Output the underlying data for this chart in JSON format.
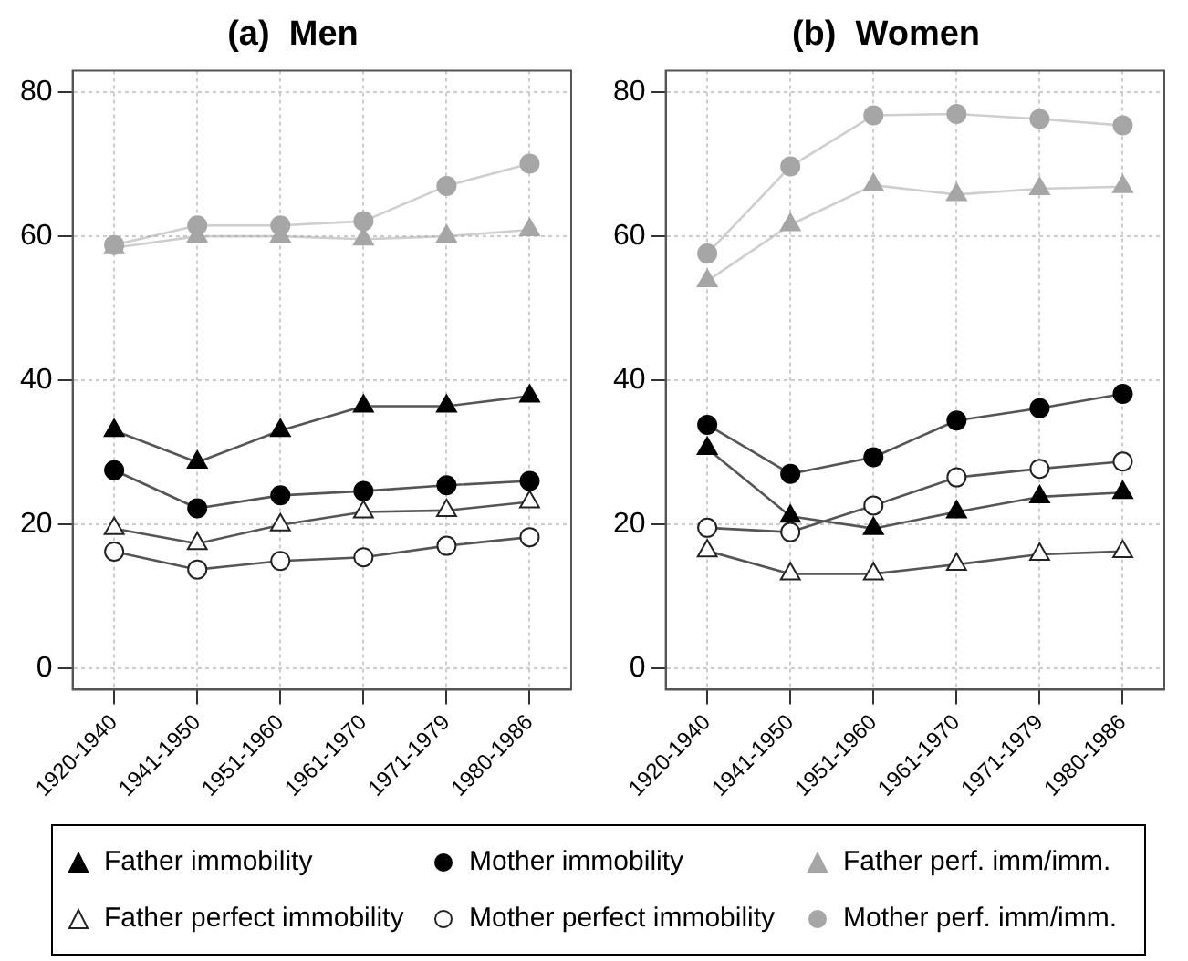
{
  "chart_data": [
    {
      "type": "line",
      "title": "(a)  Men",
      "categories": [
        "1920-1940",
        "1941-1950",
        "1951-1960",
        "1961-1970",
        "1971-1979",
        "1980-1986"
      ],
      "ylim": [
        -3,
        83
      ],
      "yticks": [
        0,
        20,
        40,
        60,
        80
      ],
      "grid": true,
      "legend": "bottom",
      "line_style": "solid",
      "series": [
        {
          "name": "Father immobility",
          "color": "#000000",
          "marker": "triangle",
          "values": [
            33.0,
            28.6,
            33.0,
            36.4,
            36.4,
            37.8
          ]
        },
        {
          "name": "Father perfect immobility",
          "color": "#ffffff",
          "marker": "triangle",
          "values": [
            19.4,
            17.3,
            19.9,
            21.7,
            21.9,
            23.1
          ]
        },
        {
          "name": "Mother immobility",
          "color": "#000000",
          "marker": "circle",
          "values": [
            27.5,
            22.2,
            24.0,
            24.6,
            25.4,
            26.0
          ]
        },
        {
          "name": "Mother perfect immobility",
          "color": "#ffffff",
          "marker": "circle",
          "values": [
            16.2,
            13.7,
            14.9,
            15.4,
            17.0,
            18.2
          ]
        },
        {
          "name": "Father perf. imm/imm.",
          "color": "#a6a6a6",
          "marker": "triangle",
          "values": [
            58.4,
            60.0,
            60.0,
            59.6,
            60.0,
            60.9
          ]
        },
        {
          "name": "Mother perf. imm/imm.",
          "color": "#a6a6a6",
          "marker": "circle",
          "values": [
            58.8,
            61.5,
            61.5,
            62.1,
            67.0,
            70.1
          ]
        }
      ]
    },
    {
      "type": "line",
      "title": "(b)  Women",
      "categories": [
        "1920-1940",
        "1941-1950",
        "1951-1960",
        "1961-1970",
        "1971-1979",
        "1980-1986"
      ],
      "ylim": [
        -3,
        83
      ],
      "yticks": [
        0,
        20,
        40,
        60,
        80
      ],
      "grid": true,
      "line_style": "solid",
      "series": [
        {
          "name": "Father immobility",
          "color": "#000000",
          "marker": "triangle",
          "values": [
            30.5,
            21.1,
            19.4,
            21.7,
            23.8,
            24.4
          ]
        },
        {
          "name": "Father perfect immobility",
          "color": "#ffffff",
          "marker": "triangle",
          "values": [
            16.3,
            13.1,
            13.1,
            14.4,
            15.8,
            16.2
          ]
        },
        {
          "name": "Mother immobility",
          "color": "#000000",
          "marker": "circle",
          "values": [
            33.8,
            27.0,
            29.3,
            34.4,
            36.1,
            38.1
          ]
        },
        {
          "name": "Mother perfect immobility",
          "color": "#ffffff",
          "marker": "circle",
          "values": [
            19.5,
            18.9,
            22.6,
            26.5,
            27.7,
            28.7
          ]
        },
        {
          "name": "Father perf. imm/imm.",
          "color": "#a6a6a6",
          "marker": "triangle",
          "values": [
            53.8,
            61.6,
            67.1,
            65.8,
            66.6,
            66.9
          ]
        },
        {
          "name": "Mother perf. imm/imm.",
          "color": "#a6a6a6",
          "marker": "circle",
          "values": [
            57.6,
            69.7,
            76.8,
            77.0,
            76.3,
            75.4
          ]
        }
      ]
    }
  ]
}
